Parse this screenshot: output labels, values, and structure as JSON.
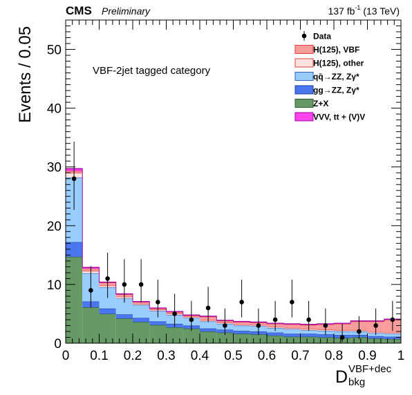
{
  "header": {
    "experiment": "CMS",
    "status": "Preliminary",
    "luminosity_main": "137 fb",
    "luminosity_exp": "-1",
    "luminosity_tail": " (13 TeV)"
  },
  "category_label": "VBF-2jet tagged category",
  "colors": {
    "data": "#000000",
    "h_vbf": "#f99c9c",
    "h_vbf_line": "#e23b3b",
    "h_other": "#ffe1de",
    "h_other_line": "#d9423e",
    "qqzz": "#99ccff",
    "qqzz_line": "#2f5fbf",
    "ggzz": "#4a76f0",
    "ggzz_line": "#1d3fa0",
    "zx": "#669966",
    "zx_line": "#2d5a2d",
    "vvv": "#ff44ee",
    "vvv_line": "#a000a0"
  },
  "chart_data": {
    "type": "bar",
    "stacked": true,
    "ylabel": "Events / 0.05",
    "xlabel_main": "D",
    "xlabel_sub": "bkg",
    "xlabel_sup": "VBF+dec",
    "xlim": [
      0,
      1
    ],
    "ylim": [
      0,
      55
    ],
    "x_ticks": [
      0,
      0.1,
      0.2,
      0.3,
      0.4,
      0.5,
      0.6,
      0.7,
      0.8,
      0.9,
      1
    ],
    "x_tick_labels": [
      "0",
      "0.1",
      "0.2",
      "0.3",
      "0.4",
      "0.5",
      "0.6",
      "0.7",
      "0.8",
      "0.9",
      "1"
    ],
    "y_ticks": [
      0,
      10,
      20,
      30,
      40,
      50
    ],
    "y_tick_labels": [
      "0",
      "10",
      "20",
      "30",
      "40",
      "50"
    ],
    "bin_edges": [
      0,
      0.05,
      0.1,
      0.15,
      0.2,
      0.25,
      0.3,
      0.35,
      0.4,
      0.45,
      0.5,
      0.55,
      0.6,
      0.65,
      0.7,
      0.75,
      0.8,
      0.85,
      0.9,
      0.95,
      1.0
    ],
    "series": [
      {
        "name": "Z+X",
        "key": "zx",
        "values": [
          14.7,
          6.1,
          5.0,
          4.2,
          3.6,
          3.1,
          2.7,
          2.5,
          2.0,
          1.8,
          1.6,
          1.5,
          1.3,
          1.1,
          1.1,
          1.0,
          0.9,
          1.0,
          0.8,
          0.7
        ]
      },
      {
        "name": "gg→ZZ, Zγ*",
        "key": "ggzz",
        "values": [
          2.5,
          1.0,
          0.9,
          0.7,
          0.7,
          0.6,
          0.6,
          0.5,
          0.5,
          0.5,
          0.5,
          0.5,
          0.5,
          0.5,
          0.5,
          0.5,
          0.5,
          0.4,
          0.4,
          0.4
        ]
      },
      {
        "name": "qq̄→ZZ, Zγ*",
        "key": "qqzz",
        "values": [
          11.0,
          4.8,
          3.6,
          2.7,
          2.2,
          1.8,
          1.5,
          1.3,
          1.2,
          1.0,
          0.9,
          0.9,
          0.8,
          0.8,
          0.6,
          0.6,
          0.6,
          0.6,
          0.5,
          0.5
        ]
      },
      {
        "name": "H(125), other",
        "key": "h_other",
        "values": [
          0.8,
          0.4,
          0.3,
          0.3,
          0.2,
          0.2,
          0.2,
          0.2,
          0.2,
          0.2,
          0.2,
          0.2,
          0.2,
          0.2,
          0.2,
          0.2,
          0.2,
          0.2,
          0.2,
          0.2
        ]
      },
      {
        "name": "H(125), VBF",
        "key": "h_vbf",
        "values": [
          0.3,
          0.4,
          0.5,
          0.4,
          0.3,
          0.2,
          0.3,
          0.2,
          0.6,
          0.3,
          0.4,
          0.4,
          0.5,
          0.6,
          0.7,
          0.9,
          1.1,
          1.5,
          1.8,
          2.2
        ]
      },
      {
        "name": "VVV, tt + (V)V",
        "key": "vvv",
        "values": [
          0.4,
          0.2,
          0.1,
          0.1,
          0.1,
          0.1,
          0.1,
          0.1,
          0.1,
          0.1,
          0.1,
          0.1,
          0.1,
          0.1,
          0.1,
          0.1,
          0.1,
          0.1,
          0.1,
          0.1
        ]
      }
    ],
    "data_points": {
      "name": "Data",
      "x": [
        0.025,
        0.075,
        0.125,
        0.175,
        0.225,
        0.275,
        0.325,
        0.375,
        0.425,
        0.475,
        0.525,
        0.575,
        0.625,
        0.675,
        0.725,
        0.775,
        0.825,
        0.875,
        0.925,
        0.975
      ],
      "y": [
        28,
        9,
        11,
        10,
        10,
        7,
        5,
        4,
        6,
        3,
        7,
        3,
        4,
        7,
        4,
        3,
        1,
        2,
        3,
        4
      ],
      "err_low": [
        5.3,
        2.9,
        3.3,
        3.1,
        3.1,
        2.6,
        2.2,
        1.9,
        2.4,
        1.6,
        2.6,
        1.6,
        1.9,
        2.6,
        1.9,
        1.6,
        0.8,
        1.3,
        1.6,
        1.9
      ],
      "err_high": [
        6.3,
        4.1,
        4.4,
        4.3,
        4.3,
        3.8,
        3.4,
        3.2,
        3.6,
        2.9,
        3.8,
        2.9,
        3.2,
        3.8,
        3.2,
        2.9,
        2.3,
        2.6,
        2.9,
        3.2
      ]
    },
    "legend": [
      {
        "label": "Data",
        "key": "data",
        "marker": true
      },
      {
        "label": "H(125), VBF",
        "key": "h_vbf"
      },
      {
        "label": "H(125), other",
        "key": "h_other"
      },
      {
        "label": "qq̄→ZZ, Zγ*",
        "key": "qqzz"
      },
      {
        "label": "gg→ZZ, Zγ*",
        "key": "ggzz"
      },
      {
        "label": "Z+X",
        "key": "zx"
      },
      {
        "label": "VVV, tt + (V)V",
        "key": "vvv"
      }
    ],
    "legend_position": "top-right"
  }
}
